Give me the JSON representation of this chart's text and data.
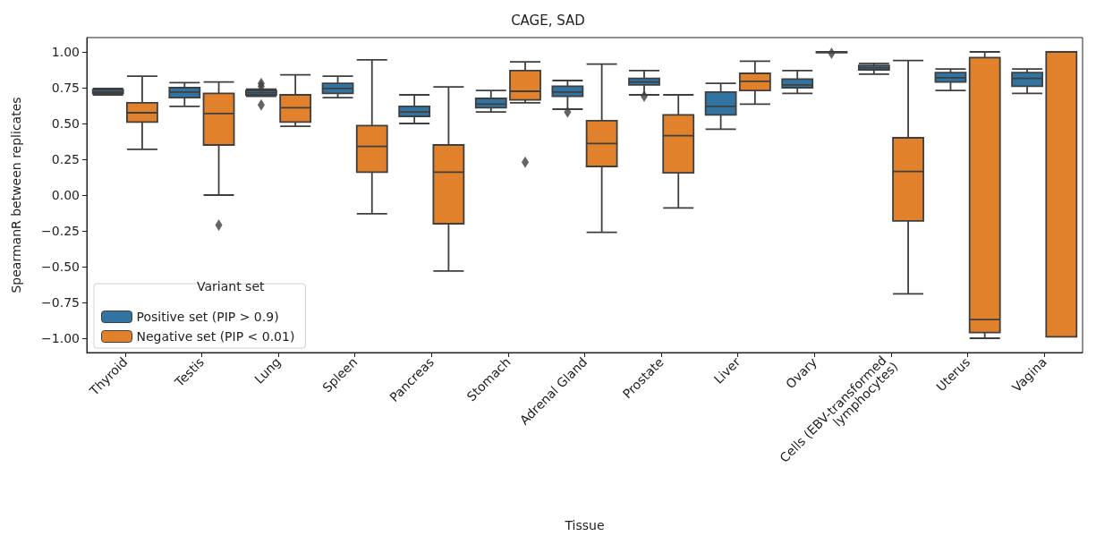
{
  "chart_data": {
    "type": "box",
    "title": "CAGE, SAD",
    "xlabel": "Tissue",
    "ylabel": "SpearmanR between replicates",
    "legend_title": "Variant set",
    "legend": "bottom left",
    "categories": [
      "Thyroid",
      "Testis",
      "Lung",
      "Spleen",
      "Pancreas",
      "Stomach",
      "Adrenal Gland",
      "Prostate",
      "Liver",
      "Ovary",
      "Cells (EBV-transformed lymphocytes)",
      "Uterus",
      "Vagina"
    ],
    "ylim": [
      -1.1,
      1.1
    ],
    "yticks": [
      {
        "value": -1,
        "label": "−1.00"
      },
      {
        "value": -0.75,
        "label": "−0.75"
      },
      {
        "value": -0.5,
        "label": "−0.50"
      },
      {
        "value": -0.25,
        "label": "−0.25"
      },
      {
        "value": 0,
        "label": "0.00"
      },
      {
        "value": 0.25,
        "label": "0.25"
      },
      {
        "value": 0.5,
        "label": "0.50"
      },
      {
        "value": 0.75,
        "label": "0.75"
      },
      {
        "value": 1,
        "label": "1.00"
      }
    ],
    "marker": "diamond",
    "series": [
      {
        "name": "Positive set (PIP > 0.9)",
        "color": "#3274a1",
        "boxes": [
          {
            "low": 0.7,
            "q1": 0.71,
            "median": 0.72,
            "q3": 0.735,
            "high": 0.745
          },
          {
            "low": 0.62,
            "q1": 0.68,
            "median": 0.72,
            "q3": 0.75,
            "high": 0.785
          },
          {
            "low": 0.69,
            "q1": 0.7,
            "median": 0.715,
            "q3": 0.73,
            "high": 0.74,
            "outliers": [
              0.78,
              0.76,
              0.63
            ]
          },
          {
            "low": 0.68,
            "q1": 0.71,
            "median": 0.745,
            "q3": 0.78,
            "high": 0.83
          },
          {
            "low": 0.5,
            "q1": 0.55,
            "median": 0.58,
            "q3": 0.62,
            "high": 0.7
          },
          {
            "low": 0.58,
            "q1": 0.61,
            "median": 0.635,
            "q3": 0.675,
            "high": 0.73
          },
          {
            "low": 0.6,
            "q1": 0.69,
            "median": 0.72,
            "q3": 0.76,
            "high": 0.8,
            "outliers": [
              0.58
            ]
          },
          {
            "low": 0.7,
            "q1": 0.77,
            "median": 0.79,
            "q3": 0.815,
            "high": 0.87,
            "outliers": [
              0.69
            ]
          },
          {
            "low": 0.46,
            "q1": 0.56,
            "median": 0.62,
            "q3": 0.72,
            "high": 0.78
          },
          {
            "low": 0.71,
            "q1": 0.75,
            "median": 0.77,
            "q3": 0.81,
            "high": 0.87
          },
          {
            "low": 0.845,
            "q1": 0.875,
            "median": 0.89,
            "q3": 0.905,
            "high": 0.92
          },
          {
            "low": 0.73,
            "q1": 0.79,
            "median": 0.82,
            "q3": 0.855,
            "high": 0.88
          },
          {
            "low": 0.71,
            "q1": 0.76,
            "median": 0.815,
            "q3": 0.855,
            "high": 0.88
          }
        ]
      },
      {
        "name": "Negative set (PIP < 0.01)",
        "color": "#e1812c",
        "boxes": [
          {
            "low": 0.32,
            "q1": 0.51,
            "median": 0.575,
            "q3": 0.645,
            "high": 0.83
          },
          {
            "low": 0.0,
            "q1": 0.35,
            "median": 0.57,
            "q3": 0.71,
            "high": 0.79,
            "outliers": [
              -0.21
            ]
          },
          {
            "low": 0.48,
            "q1": 0.51,
            "median": 0.61,
            "q3": 0.7,
            "high": 0.84
          },
          {
            "low": -0.13,
            "q1": 0.16,
            "median": 0.34,
            "q3": 0.485,
            "high": 0.945
          },
          {
            "low": -0.53,
            "q1": -0.2,
            "median": 0.16,
            "q3": 0.35,
            "high": 0.755
          },
          {
            "low": 0.645,
            "q1": 0.665,
            "median": 0.725,
            "q3": 0.87,
            "high": 0.93,
            "outliers": [
              0.23
            ]
          },
          {
            "low": -0.26,
            "q1": 0.2,
            "median": 0.36,
            "q3": 0.52,
            "high": 0.915
          },
          {
            "low": -0.09,
            "q1": 0.155,
            "median": 0.415,
            "q3": 0.56,
            "high": 0.7
          },
          {
            "low": 0.635,
            "q1": 0.73,
            "median": 0.795,
            "q3": 0.85,
            "high": 0.935
          },
          {
            "low": 0.995,
            "q1": 0.995,
            "median": 1.0,
            "q3": 1.0,
            "high": 1.0,
            "outliers": [
              0.99
            ]
          },
          {
            "low": -0.69,
            "q1": -0.18,
            "median": 0.165,
            "q3": 0.4,
            "high": 0.94
          },
          {
            "low": -1.0,
            "q1": -0.96,
            "median": -0.87,
            "q3": 0.96,
            "high": 1.0
          },
          {
            "low": -0.99,
            "q1": -0.99,
            "median": -0.99,
            "q3": 1.0,
            "high": 1.0
          }
        ]
      }
    ]
  }
}
